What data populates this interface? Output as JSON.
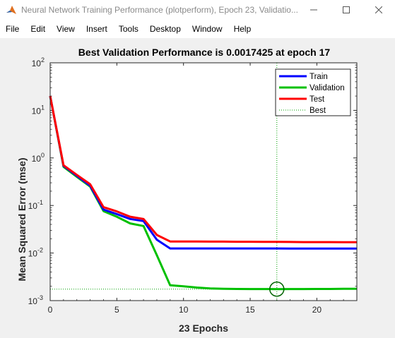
{
  "window": {
    "title": "Neural Network Training Performance (plotperform), Epoch 23, Validatio...",
    "minimize_icon": "minimize-icon",
    "maximize_icon": "maximize-icon",
    "close_icon": "close-icon"
  },
  "menu": [
    "File",
    "Edit",
    "View",
    "Insert",
    "Tools",
    "Desktop",
    "Window",
    "Help"
  ],
  "chart_data": {
    "type": "line",
    "title": "Best Validation Performance is 0.0017425 at epoch 17",
    "xlabel": "23 Epochs",
    "ylabel": "Mean Squared Error  (mse)",
    "xlim": [
      0,
      23
    ],
    "ylim": [
      0.001,
      100
    ],
    "yscale": "log",
    "xticks": [
      0,
      5,
      10,
      15,
      20
    ],
    "yticks": [
      {
        "base": "10",
        "exp": "2"
      },
      {
        "base": "10",
        "exp": "1"
      },
      {
        "base": "10",
        "exp": "0"
      },
      {
        "base": "10",
        "exp": "-1"
      },
      {
        "base": "10",
        "exp": "-2"
      },
      {
        "base": "10",
        "exp": "-3"
      }
    ],
    "legend_position": "top-right",
    "x": [
      0,
      1,
      2,
      3,
      4,
      5,
      6,
      7,
      8,
      9,
      10,
      11,
      12,
      13,
      14,
      15,
      16,
      17,
      18,
      19,
      20,
      21,
      22,
      23
    ],
    "series": [
      {
        "name": "Train",
        "color": "#0000ff",
        "values": [
          20,
          0.68,
          0.42,
          0.26,
          0.082,
          0.066,
          0.052,
          0.047,
          0.019,
          0.0125,
          0.0125,
          0.0125,
          0.0125,
          0.0125,
          0.0125,
          0.0125,
          0.0125,
          0.0125,
          0.0124,
          0.0124,
          0.0124,
          0.0124,
          0.0124,
          0.0124
        ]
      },
      {
        "name": "Validation",
        "color": "#00c000",
        "values": [
          20,
          0.65,
          0.4,
          0.25,
          0.076,
          0.058,
          0.042,
          0.037,
          0.009,
          0.0021,
          0.002,
          0.00188,
          0.0018,
          0.00177,
          0.00176,
          0.00175,
          0.00175,
          0.0017425,
          0.00175,
          0.00175,
          0.00176,
          0.00176,
          0.00177,
          0.00177
        ]
      },
      {
        "name": "Test",
        "color": "#ff0000",
        "values": [
          20,
          0.7,
          0.44,
          0.28,
          0.092,
          0.075,
          0.058,
          0.052,
          0.024,
          0.0175,
          0.0175,
          0.0175,
          0.0174,
          0.0174,
          0.0173,
          0.0173,
          0.0172,
          0.0172,
          0.0171,
          0.017,
          0.017,
          0.017,
          0.0169,
          0.0169
        ]
      }
    ],
    "best": {
      "name": "Best",
      "epoch": 17,
      "value": 0.0017425,
      "color": "#00a000"
    }
  }
}
